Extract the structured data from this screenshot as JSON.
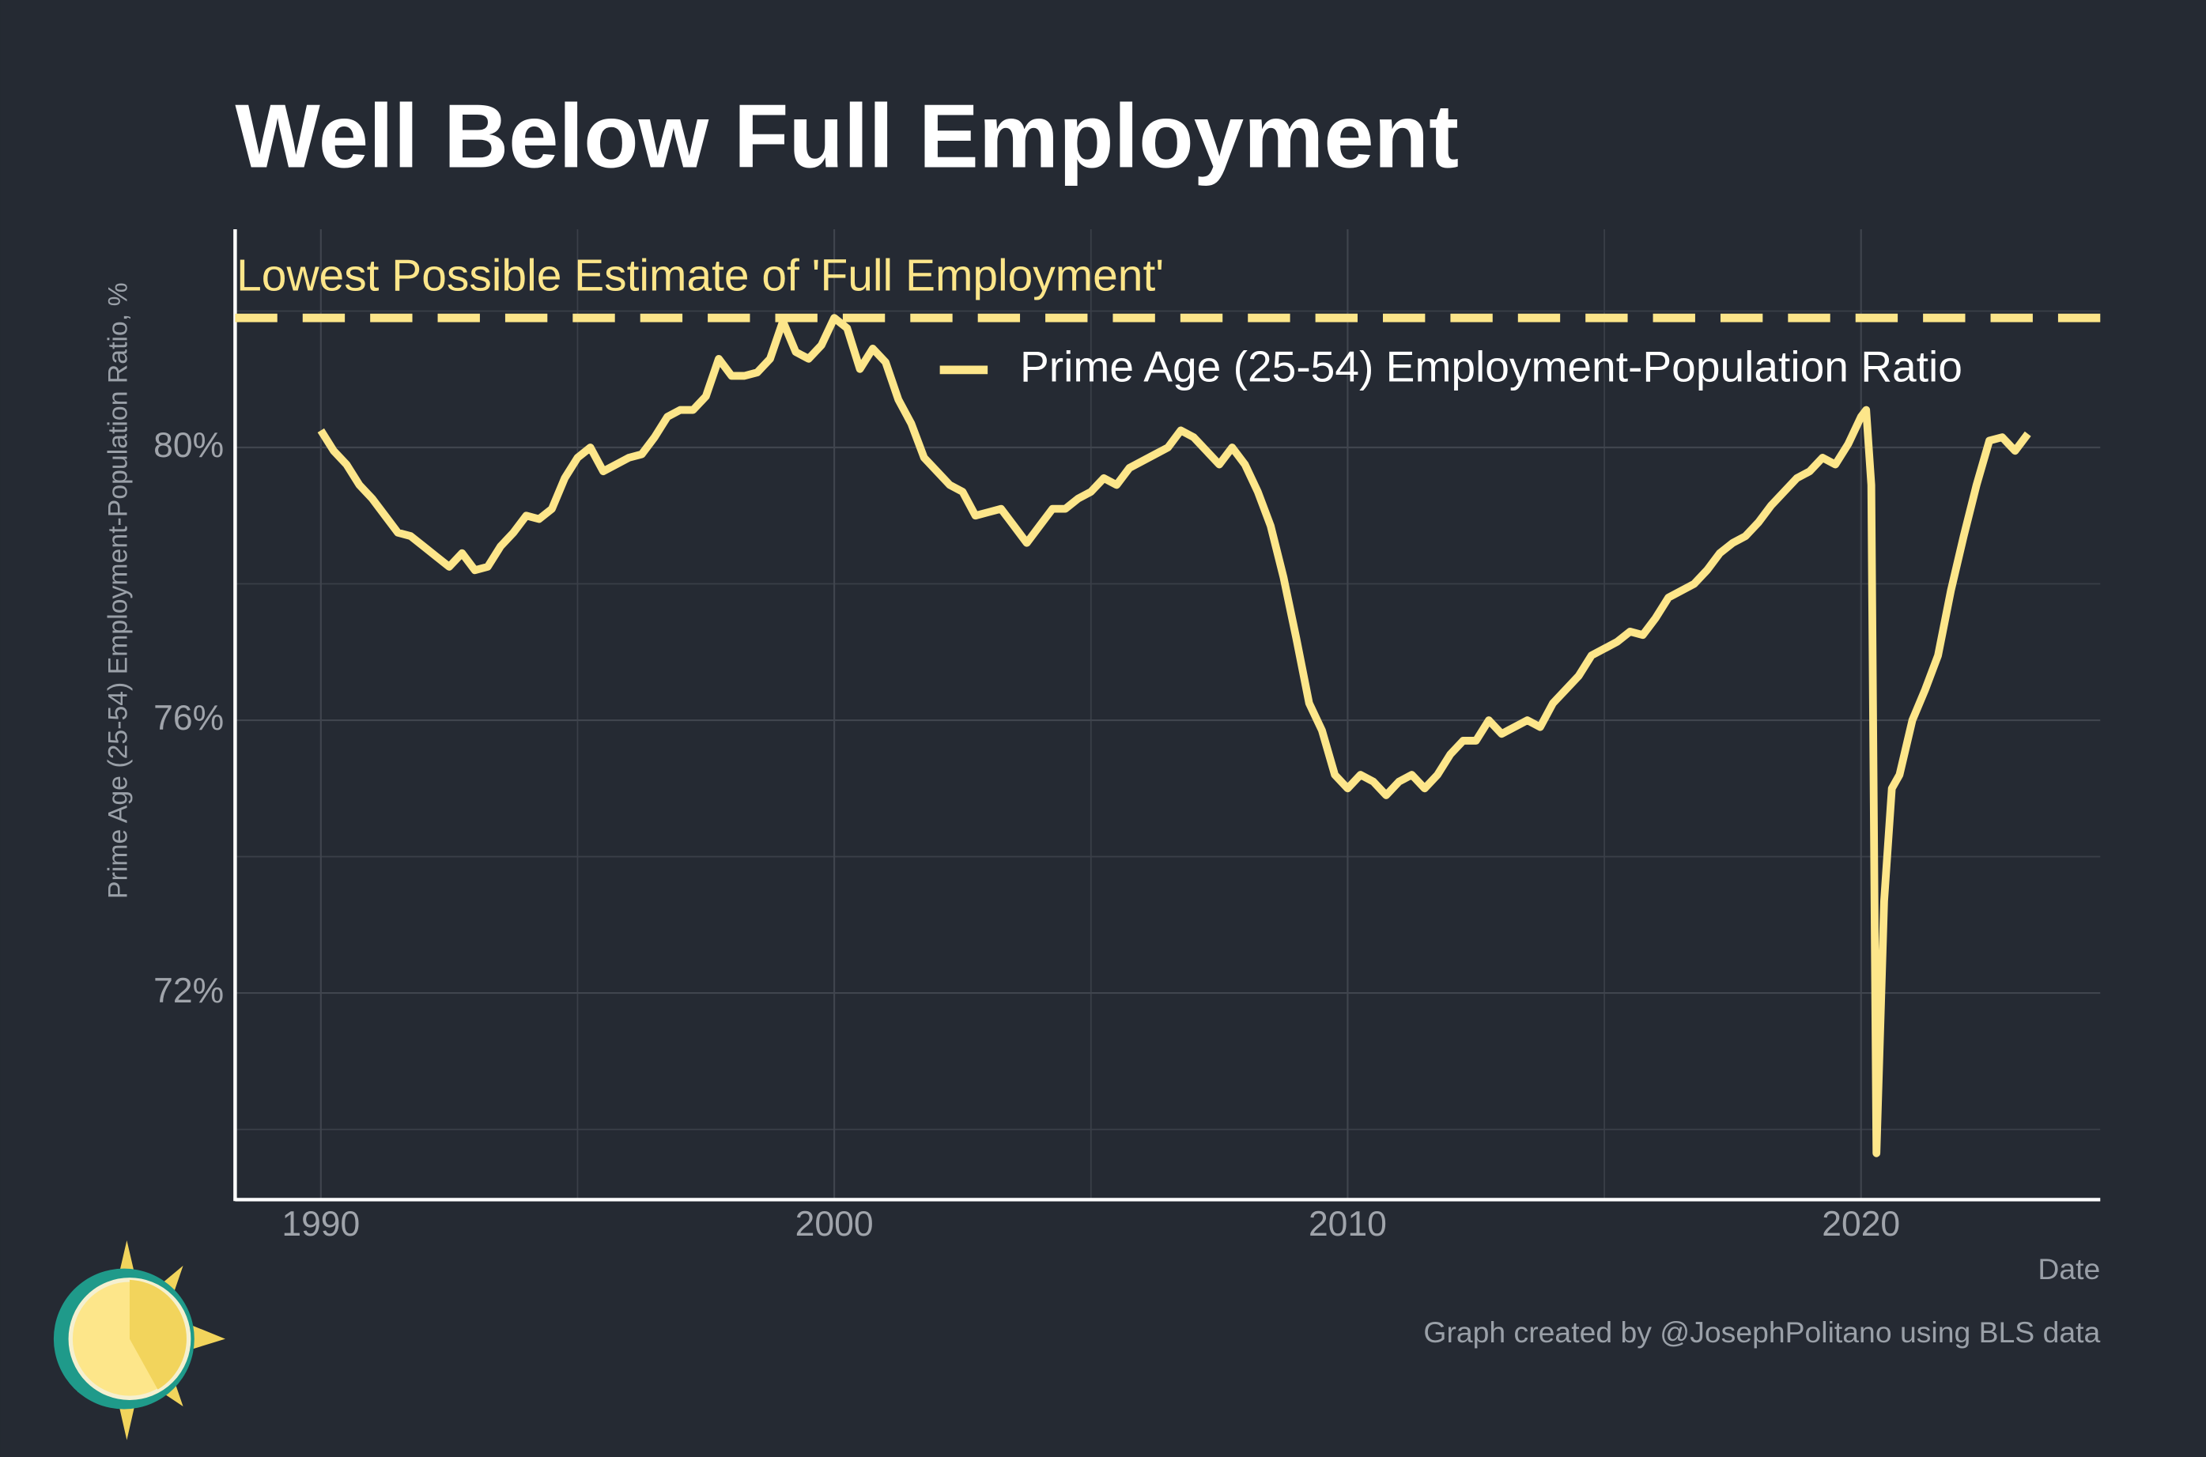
{
  "chart_data": {
    "type": "line",
    "title": "Well Below Full Employment",
    "y_label": "Prime Age (25-54) Employment-Population Ratio, %",
    "x_label": "Date",
    "caption": "Graph created by @JosephPolitano using BLS data",
    "legend_position": "top-right",
    "grid": true,
    "xlim": [
      1988.33,
      2024.66
    ],
    "ylim": [
      68.97,
      83.2
    ],
    "xticks": [
      1990,
      2000,
      2010,
      2020
    ],
    "yticks": [
      {
        "value": 72,
        "label": "72%"
      },
      {
        "value": 76,
        "label": "76%"
      },
      {
        "value": 80,
        "label": "80%"
      }
    ],
    "x_minor_grid": [
      1995,
      2005,
      2015
    ],
    "y_minor_grid": [
      70,
      74,
      78,
      82
    ],
    "reference_line": {
      "value": 81.9,
      "label": "Lowest Possible Estimate of 'Full Employment'",
      "color": "#fde68a"
    },
    "series": [
      {
        "name": "Prime Age (25-54) Employment-Population Ratio",
        "color": "#fde68a",
        "x": [
          1990.0,
          1990.25,
          1990.5,
          1990.75,
          1991.0,
          1991.25,
          1991.5,
          1991.75,
          1992.0,
          1992.25,
          1992.5,
          1992.75,
          1993.0,
          1993.25,
          1993.5,
          1993.75,
          1994.0,
          1994.25,
          1994.5,
          1994.75,
          1995.0,
          1995.25,
          1995.5,
          1995.75,
          1996.0,
          1996.25,
          1996.5,
          1996.75,
          1997.0,
          1997.25,
          1997.5,
          1997.75,
          1998.0,
          1998.25,
          1998.5,
          1998.75,
          1999.0,
          1999.25,
          1999.5,
          1999.75,
          2000.0,
          2000.25,
          2000.5,
          2000.75,
          2001.0,
          2001.25,
          2001.5,
          2001.75,
          2002.0,
          2002.25,
          2002.5,
          2002.75,
          2003.0,
          2003.25,
          2003.5,
          2003.75,
          2004.0,
          2004.25,
          2004.5,
          2004.75,
          2005.0,
          2005.25,
          2005.5,
          2005.75,
          2006.0,
          2006.25,
          2006.5,
          2006.75,
          2007.0,
          2007.25,
          2007.5,
          2007.75,
          2008.0,
          2008.25,
          2008.5,
          2008.75,
          2009.0,
          2009.25,
          2009.5,
          2009.75,
          2010.0,
          2010.25,
          2010.5,
          2010.75,
          2011.0,
          2011.25,
          2011.5,
          2011.75,
          2012.0,
          2012.25,
          2012.5,
          2012.75,
          2013.0,
          2013.25,
          2013.5,
          2013.75,
          2014.0,
          2014.25,
          2014.5,
          2014.75,
          2015.0,
          2015.25,
          2015.5,
          2015.75,
          2016.0,
          2016.25,
          2016.5,
          2016.75,
          2017.0,
          2017.25,
          2017.5,
          2017.75,
          2018.0,
          2018.25,
          2018.5,
          2018.75,
          2019.0,
          2019.25,
          2019.5,
          2019.75,
          2020.0,
          2020.1,
          2020.2,
          2020.3,
          2020.45,
          2020.6,
          2020.75,
          2021.0,
          2021.25,
          2021.5,
          2021.75,
          2022.0,
          2022.25,
          2022.5,
          2022.75,
          2023.0,
          2023.25
        ],
        "values": [
          80.25,
          79.95,
          79.75,
          79.45,
          79.25,
          79.0,
          78.75,
          78.7,
          78.55,
          78.4,
          78.25,
          78.45,
          78.2,
          78.25,
          78.55,
          78.75,
          79.0,
          78.95,
          79.1,
          79.55,
          79.85,
          80.0,
          79.65,
          79.75,
          79.85,
          79.9,
          80.15,
          80.45,
          80.55,
          80.55,
          80.75,
          81.3,
          81.05,
          81.05,
          81.1,
          81.3,
          81.85,
          81.4,
          81.3,
          81.5,
          81.9,
          81.75,
          81.15,
          81.45,
          81.25,
          80.7,
          80.35,
          79.85,
          79.65,
          79.45,
          79.35,
          79.0,
          79.05,
          79.1,
          78.85,
          78.6,
          78.85,
          79.1,
          79.1,
          79.25,
          79.35,
          79.55,
          79.45,
          79.7,
          79.8,
          79.9,
          80.0,
          80.25,
          80.15,
          79.95,
          79.75,
          80.0,
          79.75,
          79.35,
          78.85,
          78.1,
          77.2,
          76.25,
          75.85,
          75.2,
          75.0,
          75.2,
          75.1,
          74.9,
          75.1,
          75.2,
          75.0,
          75.2,
          75.5,
          75.7,
          75.7,
          76.0,
          75.8,
          75.9,
          76.0,
          75.9,
          76.25,
          76.45,
          76.65,
          76.95,
          77.05,
          77.15,
          77.3,
          77.25,
          77.5,
          77.8,
          77.9,
          78.0,
          78.2,
          78.45,
          78.6,
          78.7,
          78.9,
          79.15,
          79.35,
          79.55,
          79.65,
          79.85,
          79.75,
          80.05,
          80.45,
          80.55,
          79.45,
          69.65,
          73.35,
          75.0,
          75.2,
          76.0,
          76.45,
          76.95,
          77.9,
          78.7,
          79.45,
          80.1,
          80.15,
          79.95,
          80.2
        ]
      }
    ]
  }
}
